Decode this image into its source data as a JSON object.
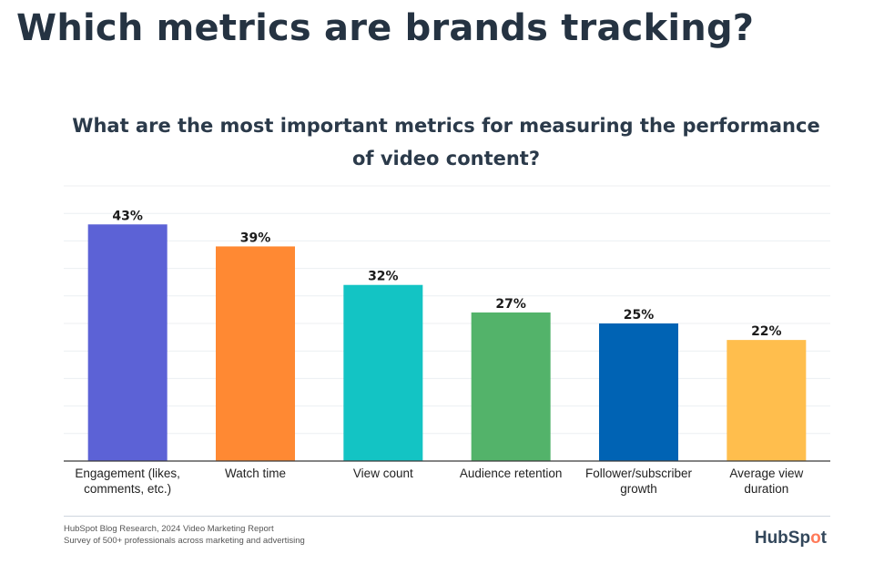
{
  "page": {
    "heading": "Which metrics are brands tracking?"
  },
  "chart_data": {
    "type": "bar",
    "title_lines": [
      "What are the most important metrics for measuring the performance",
      "of video content?"
    ],
    "categories": [
      [
        "Engagement (likes,",
        "comments, etc.)"
      ],
      [
        "Watch time"
      ],
      [
        "View count"
      ],
      [
        "Audience retention"
      ],
      [
        "Follower/subscriber",
        "growth"
      ],
      [
        "Average view",
        "duration"
      ]
    ],
    "values": [
      43,
      39,
      32,
      27,
      25,
      22
    ],
    "value_labels": [
      "43%",
      "39%",
      "32%",
      "27%",
      "25%",
      "22%"
    ],
    "colors": [
      "#5c62d6",
      "#ff8933",
      "#13c4c4",
      "#53b36a",
      "#0063b4",
      "#ffbe4d"
    ],
    "ylim": [
      0,
      50
    ],
    "grid": true,
    "xlabel": "",
    "ylabel": ""
  },
  "footer": {
    "source_line1": "HubSpot Blog Research, 2024 Video Marketing Report",
    "source_line2": "Survey of 500+ professionals across marketing and advertising",
    "logo_text_a": "HubSp",
    "logo_text_b": "o",
    "logo_text_c": "t"
  }
}
